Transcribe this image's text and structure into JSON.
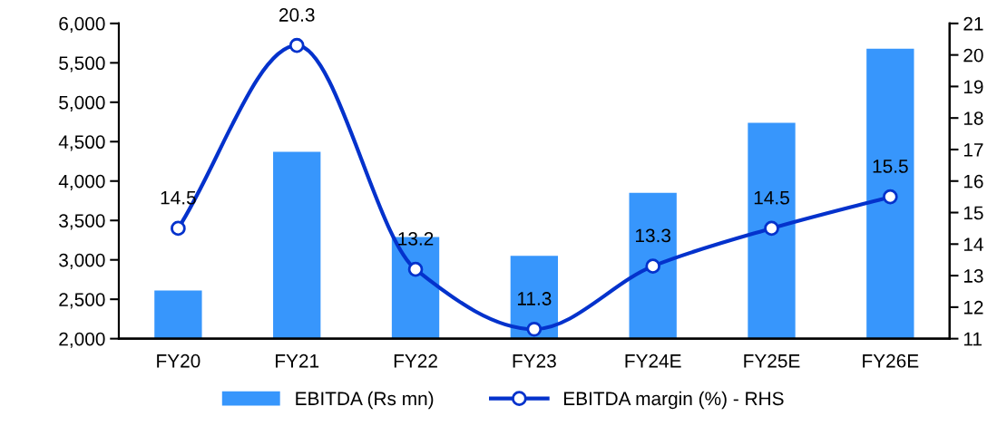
{
  "chart_data": {
    "type": "bar",
    "categories": [
      "FY20",
      "FY21",
      "FY22",
      "FY23",
      "FY24E",
      "FY25E",
      "FY26E"
    ],
    "series": [
      {
        "name": "EBITDA (Rs mn)",
        "color": "#3796fc",
        "values": [
          2610,
          4370,
          3290,
          3050,
          3850,
          4740,
          5680
        ]
      },
      {
        "name": "EBITDA margin (%) - RHS",
        "type": "line",
        "axis": "y2",
        "color": "#0432cc",
        "values": [
          14.5,
          20.3,
          13.2,
          11.3,
          13.3,
          14.5,
          15.5
        ],
        "value_labels": [
          "14.5",
          "20.3",
          "13.2",
          "11.3",
          "13.3",
          "14.5",
          "15.5"
        ]
      }
    ],
    "ylim": [
      2000,
      6000
    ],
    "yticks": [
      {
        "value": 2000,
        "label": "2,000"
      },
      {
        "value": 2500,
        "label": "2,500"
      },
      {
        "value": 3000,
        "label": "3,000"
      },
      {
        "value": 3500,
        "label": "3,500"
      },
      {
        "value": 4000,
        "label": "4,000"
      },
      {
        "value": 4500,
        "label": "4,500"
      },
      {
        "value": 5000,
        "label": "5,000"
      },
      {
        "value": 5500,
        "label": "5,500"
      },
      {
        "value": 6000,
        "label": "6,000"
      }
    ],
    "y2lim": [
      11,
      21
    ],
    "y2ticks": [
      11,
      12,
      13,
      14,
      15,
      16,
      17,
      18,
      19,
      20,
      21
    ],
    "marker": "circle",
    "line_style": "solid",
    "grid": false,
    "legend": "bottom"
  }
}
